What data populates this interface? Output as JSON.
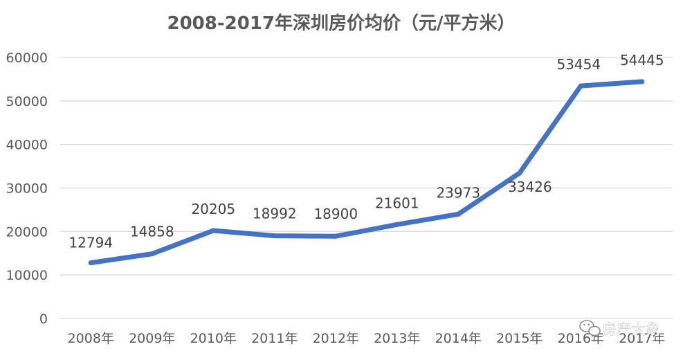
{
  "chart_data": {
    "type": "line",
    "title": "2008-2017年深圳房价均价（元/平方米）",
    "categories": [
      "2008年",
      "2009年",
      "2010年",
      "2011年",
      "2012年",
      "2013年",
      "2014年",
      "2015年",
      "2016年",
      "2017年"
    ],
    "series": [
      {
        "values": [
          12794,
          14858,
          20205,
          18992,
          18900,
          21601,
          23973,
          33426,
          53454,
          54445
        ]
      }
    ],
    "data_labels": [
      "12794",
      "14858",
      "20205",
      "18992",
      "18900",
      "21601",
      "23973",
      "33426",
      "53454",
      "54445"
    ],
    "yticks": [
      "0",
      "10000",
      "20000",
      "30000",
      "40000",
      "50000",
      "60000"
    ],
    "ylim": [
      0,
      60000
    ],
    "grid": true,
    "legend": "none",
    "line_color": "#4472C4",
    "grid_color": "#D9D9D9"
  },
  "watermark": {
    "text": "房产大象",
    "icon": "wechat-icon"
  }
}
